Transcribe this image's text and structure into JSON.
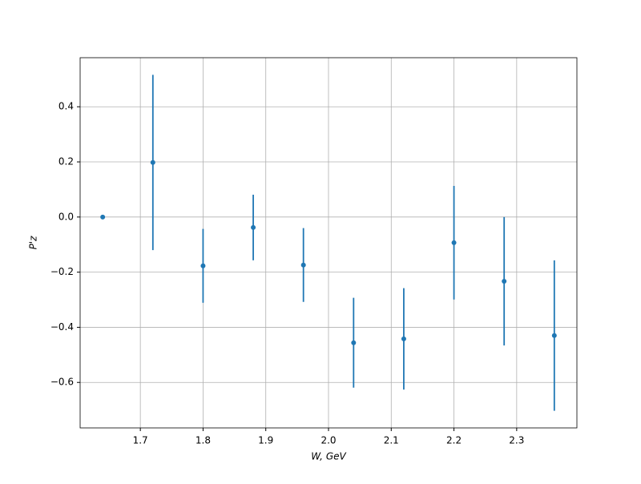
{
  "chart_data": {
    "type": "errorbar",
    "x_label": "W, GeV",
    "y_label": "P'z",
    "x": [
      1.64,
      1.72,
      1.8,
      1.88,
      1.96,
      2.04,
      2.12,
      2.2,
      2.28,
      2.36
    ],
    "series": [
      {
        "color": "#1f77b4",
        "values": [
          0.0,
          0.198,
          -0.177,
          -0.038,
          -0.174,
          -0.456,
          -0.442,
          -0.093,
          -0.233,
          -0.43
        ],
        "errors": [
          0.0,
          0.318,
          0.134,
          0.119,
          0.134,
          0.163,
          0.184,
          0.206,
          0.233,
          0.273
        ]
      }
    ],
    "xlim": [
      1.604,
      2.396
    ],
    "ylim": [
      -0.765,
      0.578
    ],
    "xticks": [
      1.7,
      1.8,
      1.9,
      {
        "value": 2.0,
        "label": "2.0"
      },
      2.1,
      2.2,
      2.3
    ],
    "yticks": [
      {
        "value": -0.6,
        "label": "−0.6"
      },
      {
        "value": -0.4,
        "label": "−0.4"
      },
      {
        "value": -0.2,
        "label": "−0.2"
      },
      {
        "value": 0,
        "label": "0.0"
      },
      0.2,
      0.4
    ],
    "grid": true
  }
}
